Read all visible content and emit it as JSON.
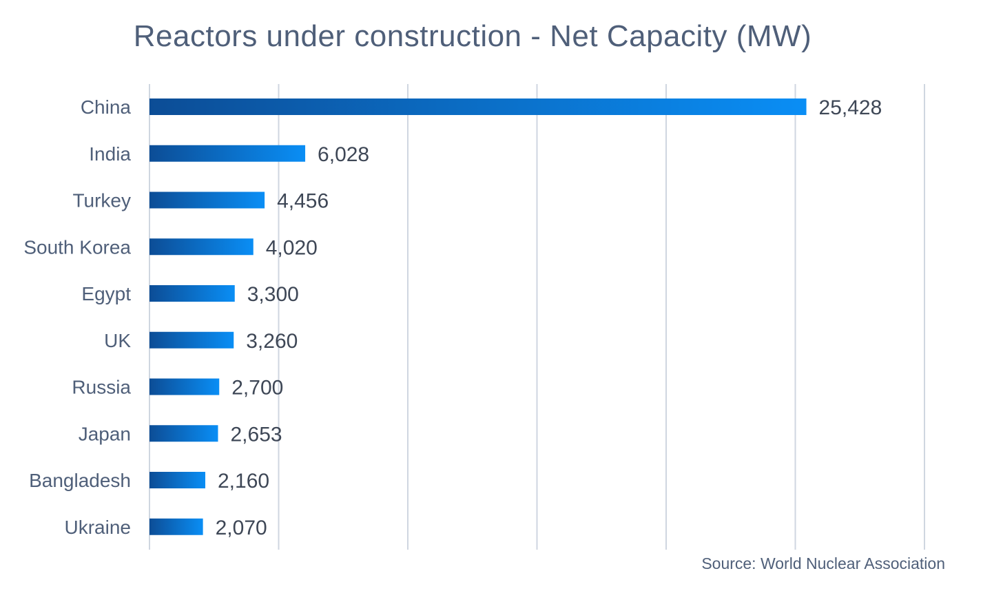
{
  "chart_data": {
    "type": "bar",
    "orientation": "horizontal",
    "title": "Reactors under construction - Net Capacity (MW)",
    "source": "Source: World Nuclear Association",
    "categories": [
      "China",
      "India",
      "Turkey",
      "South Korea",
      "Egypt",
      "UK",
      "Russia",
      "Japan",
      "Bangladesh",
      "Ukraine"
    ],
    "values": [
      25428,
      6028,
      4456,
      4020,
      3300,
      3260,
      2700,
      2653,
      2160,
      2070
    ],
    "value_labels": [
      "25,428",
      "6,028",
      "4,456",
      "4,020",
      "3,300",
      "3,260",
      "2,700",
      "2,653",
      "2,160",
      "2,070"
    ],
    "xlim": [
      0,
      30000
    ],
    "grid": true,
    "xlabel": "",
    "ylabel": "",
    "colors": {
      "bar_start": "#0c4d96",
      "bar_end": "#0a8ef5",
      "grid": "#cfd6e0",
      "text": "#4f5f79"
    }
  }
}
